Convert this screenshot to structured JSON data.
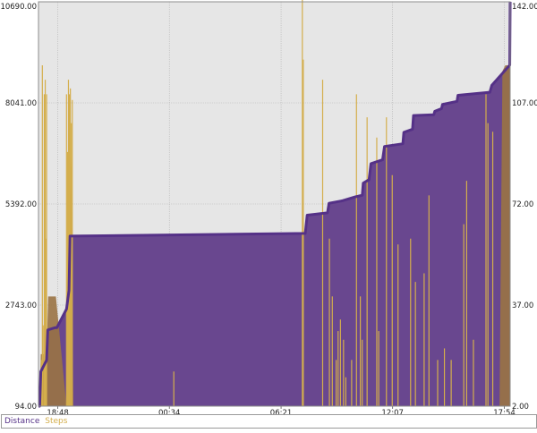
{
  "chart_data": {
    "type": "area",
    "title": "",
    "xlabel": "",
    "x_ticks": [
      "18:48",
      "00:34",
      "06:21",
      "12:07",
      "17:54"
    ],
    "x_range_hours": [
      0,
      24.4
    ],
    "x_tick_positions_hours": [
      1.0,
      6.77,
      12.55,
      18.32,
      24.1
    ],
    "y_left": {
      "label": "",
      "ticks": [
        "94.00",
        "2743.00",
        "5392.00",
        "8041.00",
        "10690.00"
      ],
      "ylim": [
        94,
        10690
      ]
    },
    "y_right": {
      "label": "",
      "ticks": [
        "2.00",
        "37.00",
        "72.00",
        "107.00",
        "142.00"
      ],
      "ylim": [
        2,
        142
      ]
    },
    "grid": true,
    "legend_placement": "bottom-left",
    "series": [
      {
        "name": "Distance",
        "axis": "left",
        "color": "#553187",
        "fill": "#69478f",
        "points": [
          [
            0,
            94
          ],
          [
            0.06,
            94
          ],
          [
            0.12,
            1000
          ],
          [
            0.42,
            1300
          ],
          [
            0.48,
            2090
          ],
          [
            0.85,
            2150
          ],
          [
            0.95,
            2150
          ],
          [
            1.45,
            2640
          ],
          [
            1.58,
            3130
          ],
          [
            1.63,
            4550
          ],
          [
            13.8,
            4620
          ],
          [
            13.9,
            5100
          ],
          [
            14.95,
            5160
          ],
          [
            15.03,
            5410
          ],
          [
            15.75,
            5480
          ],
          [
            16.4,
            5580
          ],
          [
            16.75,
            5620
          ],
          [
            16.8,
            5940
          ],
          [
            17.1,
            6030
          ],
          [
            17.2,
            6450
          ],
          [
            17.8,
            6550
          ],
          [
            17.9,
            6900
          ],
          [
            18.85,
            6970
          ],
          [
            18.9,
            7270
          ],
          [
            19.35,
            7350
          ],
          [
            19.4,
            7710
          ],
          [
            20.45,
            7730
          ],
          [
            20.5,
            7820
          ],
          [
            20.85,
            7890
          ],
          [
            20.9,
            8000
          ],
          [
            21.65,
            8080
          ],
          [
            21.7,
            8240
          ],
          [
            23.35,
            8320
          ],
          [
            23.45,
            8500
          ],
          [
            24.38,
            9030
          ],
          [
            24.4,
            10690
          ]
        ]
      },
      {
        "name": "Steps",
        "axis": "right",
        "color": "#d4ae4c",
        "area_color": "#9a7344",
        "spikes": [
          [
            0.15,
            18
          ],
          [
            0.2,
            120
          ],
          [
            0.24,
            30
          ],
          [
            0.3,
            110
          ],
          [
            0.35,
            115
          ],
          [
            0.38,
            60
          ],
          [
            0.42,
            110
          ],
          [
            1.45,
            110
          ],
          [
            1.5,
            90
          ],
          [
            1.55,
            115
          ],
          [
            1.6,
            110
          ],
          [
            1.65,
            112
          ],
          [
            1.7,
            100
          ],
          [
            1.75,
            108
          ],
          [
            7.0,
            14
          ],
          [
            13.65,
            145
          ],
          [
            13.7,
            122
          ],
          [
            14.7,
            115
          ],
          [
            15.05,
            60
          ],
          [
            15.2,
            40
          ],
          [
            15.4,
            18
          ],
          [
            15.5,
            28
          ],
          [
            15.62,
            32
          ],
          [
            15.78,
            25
          ],
          [
            15.9,
            12
          ],
          [
            16.2,
            18
          ],
          [
            16.45,
            110
          ],
          [
            16.65,
            40
          ],
          [
            16.75,
            25
          ],
          [
            17.0,
            102
          ],
          [
            17.5,
            95
          ],
          [
            17.6,
            28
          ],
          [
            18.0,
            102
          ],
          [
            18.3,
            82
          ],
          [
            18.6,
            58
          ],
          [
            19.25,
            60
          ],
          [
            19.5,
            45
          ],
          [
            19.95,
            48
          ],
          [
            20.2,
            75
          ],
          [
            20.65,
            18
          ],
          [
            21.0,
            22
          ],
          [
            21.35,
            18
          ],
          [
            22.0,
            65
          ],
          [
            22.15,
            80
          ],
          [
            22.5,
            25
          ],
          [
            23.15,
            110
          ],
          [
            23.25,
            100
          ],
          [
            23.5,
            97
          ]
        ],
        "area_points": [
          [
            0.05,
            2
          ],
          [
            0.12,
            20
          ],
          [
            0.42,
            20
          ],
          [
            0.5,
            40
          ],
          [
            0.85,
            40
          ],
          [
            0.9,
            40
          ],
          [
            1.45,
            2
          ],
          [
            1.5,
            35
          ],
          [
            1.6,
            70
          ],
          [
            1.7,
            90
          ],
          [
            1.8,
            2
          ],
          [
            23.85,
            2
          ],
          [
            23.95,
            80
          ],
          [
            24.0,
            118
          ],
          [
            24.15,
            120
          ],
          [
            24.4,
            120
          ],
          [
            24.4,
            2
          ]
        ]
      }
    ]
  },
  "legend": {
    "distance_label": "Distance",
    "steps_label": "Steps"
  }
}
